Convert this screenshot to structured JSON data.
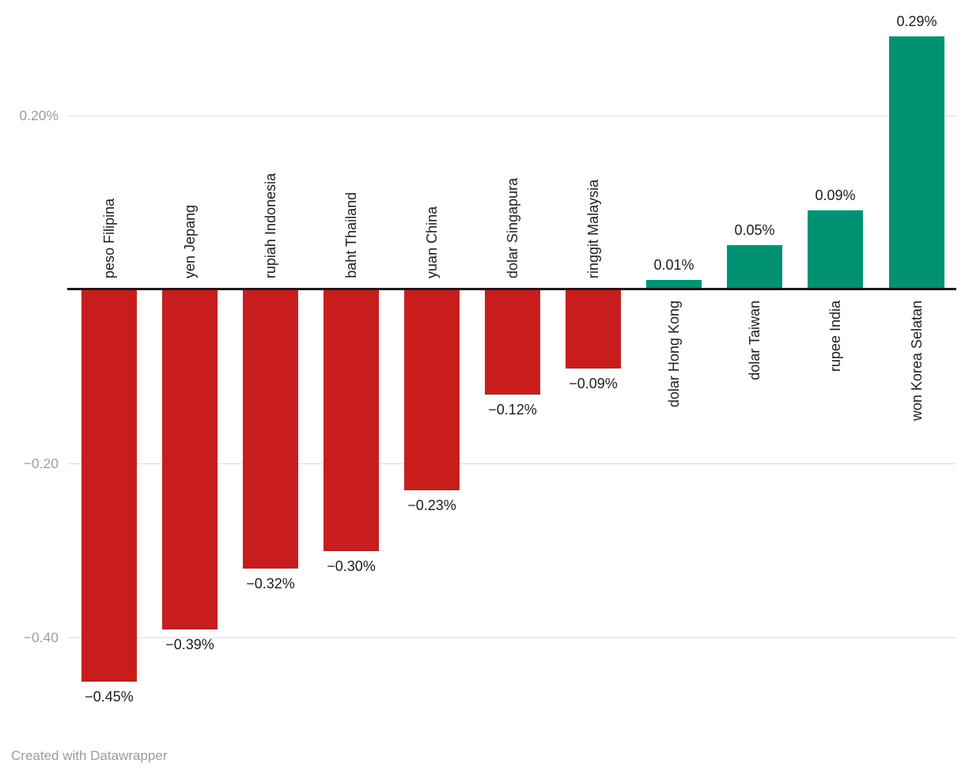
{
  "chart_data": {
    "type": "bar",
    "categories": [
      "peso Filipina",
      "yen Jepang",
      "rupiah Indonesia",
      "baht Thailand",
      "yuan China",
      "dolar Singapura",
      "ringgit Malaysia",
      "dolar Hong Kong",
      "dolar Taiwan",
      "rupee India",
      "won Korea Selatan"
    ],
    "values": [
      -0.45,
      -0.39,
      -0.32,
      -0.3,
      -0.23,
      -0.12,
      -0.09,
      0.01,
      0.05,
      0.09,
      0.29
    ],
    "value_labels": [
      "−0.45%",
      "−0.39%",
      "−0.32%",
      "−0.30%",
      "−0.23%",
      "−0.12%",
      "−0.09%",
      "0.01%",
      "0.05%",
      "0.09%",
      "0.29%"
    ],
    "title": "",
    "xlabel": "",
    "ylabel": "",
    "ylim": [
      -0.5,
      0.32
    ],
    "yticks": [
      {
        "value": 0.2,
        "label": "0.20%"
      },
      {
        "value": -0.2,
        "label": "−0.20"
      },
      {
        "value": -0.4,
        "label": "−0.40"
      }
    ],
    "zero_line": 0,
    "grid": true,
    "legend": "none",
    "colors": {
      "negative": "#c71e1d",
      "positive": "#009272"
    }
  },
  "footer": {
    "credit": "Created with Datawrapper"
  }
}
